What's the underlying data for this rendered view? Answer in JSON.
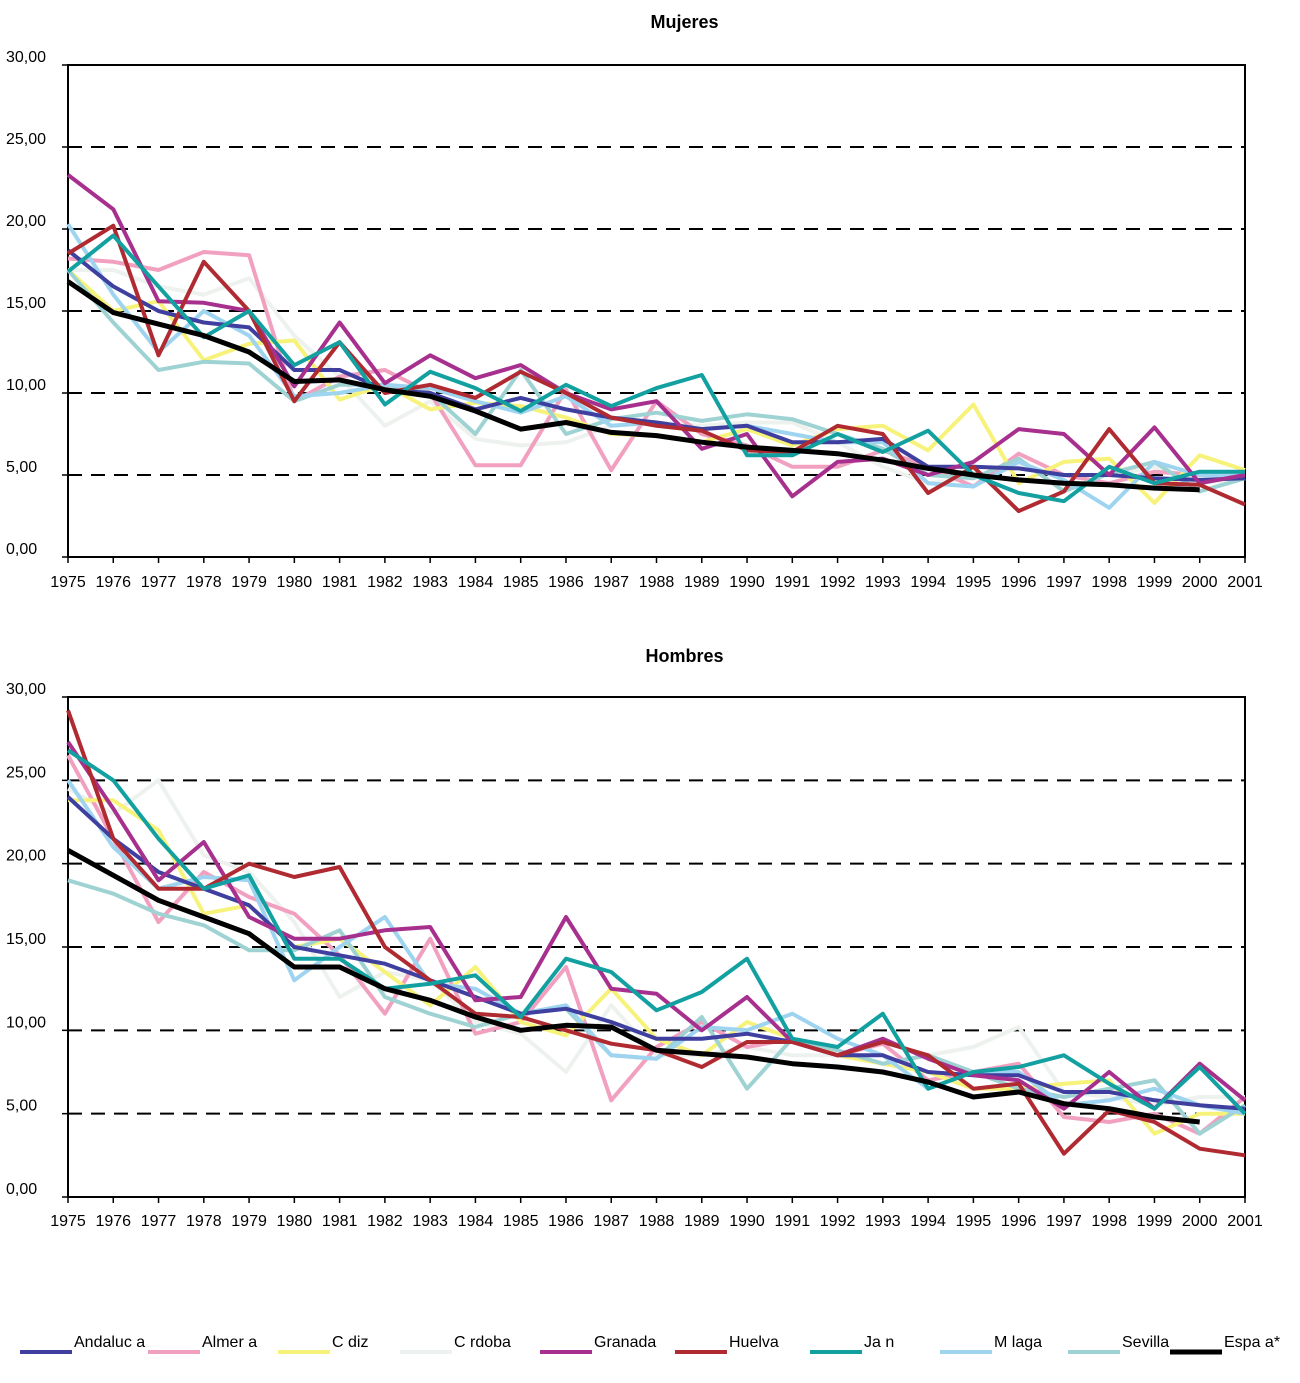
{
  "legend": [
    {
      "name": "Andaluc a",
      "color": "#3f3f9f",
      "width": 4
    },
    {
      "name": "Almer a",
      "color": "#f2a0c0",
      "width": 4
    },
    {
      "name": "C diz",
      "color": "#f7f27a",
      "width": 4
    },
    {
      "name": "C rdoba",
      "color": "#eef2ee",
      "width": 4
    },
    {
      "name": "Granada",
      "color": "#a7308e",
      "width": 4
    },
    {
      "name": "Huelva",
      "color": "#b02a32",
      "width": 4
    },
    {
      "name": "Ja n",
      "color": "#13a0a0",
      "width": 4
    },
    {
      "name": "M laga",
      "color": "#9fd4f0",
      "width": 4
    },
    {
      "name": "Sevilla",
      "color": "#9fd2d2",
      "width": 4
    },
    {
      "name": "Espa a*",
      "color": "#000000",
      "width": 5
    }
  ],
  "chart_data": [
    {
      "type": "line",
      "title": "Mujeres",
      "ylim": [
        0,
        30
      ],
      "yticks": [
        "0,00",
        "5,00",
        "10,00",
        "15,00",
        "20,00",
        "25,00",
        "30,00"
      ],
      "categories": [
        "1975",
        "1976",
        "1977",
        "1978",
        "1979",
        "1980",
        "1981",
        "1982",
        "1983",
        "1984",
        "1985",
        "1986",
        "1987",
        "1988",
        "1989",
        "1990",
        "1991",
        "1992",
        "1993",
        "1994",
        "1995",
        "1996",
        "1997",
        "1998",
        "1999",
        "2000",
        "2001"
      ],
      "series": [
        {
          "name": "C rdoba",
          "values": [
            17.5,
            17.5,
            16.5,
            16.0,
            17.0,
            13.5,
            11.0,
            8.0,
            9.5,
            7.2,
            6.8,
            7.0,
            8.0,
            8.2,
            8.0,
            8.2,
            8.2,
            7.0,
            5.5,
            4.5,
            4.8,
            5.5,
            5.0,
            5.0,
            5.5,
            4.5,
            4.8
          ]
        },
        {
          "name": "Almer a",
          "values": [
            18.2,
            18.0,
            17.5,
            18.6,
            18.4,
            9.5,
            11.0,
            11.4,
            10.0,
            5.6,
            5.6,
            10.2,
            5.3,
            9.5,
            7.5,
            6.8,
            5.5,
            5.5,
            6.5,
            5.5,
            4.3,
            6.3,
            5.0,
            4.5,
            5.2,
            5.0,
            5.0
          ]
        },
        {
          "name": "C diz",
          "values": [
            17.5,
            15.0,
            15.6,
            12.0,
            13.0,
            13.2,
            9.6,
            10.5,
            9.0,
            9.4,
            9.2,
            8.5,
            7.5,
            7.4,
            7.0,
            7.8,
            6.8,
            7.8,
            8.0,
            6.5,
            9.3,
            4.5,
            5.8,
            6.0,
            3.3,
            6.2,
            5.3
          ]
        },
        {
          "name": "Sevilla",
          "values": [
            17.5,
            14.3,
            11.4,
            11.9,
            11.8,
            9.5,
            10.5,
            10.5,
            10.0,
            7.5,
            11.4,
            7.5,
            8.4,
            8.8,
            8.3,
            8.7,
            8.4,
            7.5,
            6.6,
            5.0,
            4.8,
            6.0,
            4.0,
            5.1,
            5.8,
            4.0,
            4.8
          ]
        },
        {
          "name": "M laga",
          "values": [
            20.3,
            16.0,
            12.5,
            15.0,
            13.5,
            9.8,
            10.0,
            10.5,
            10.3,
            9.5,
            8.8,
            9.8,
            8.0,
            8.2,
            7.8,
            8.0,
            7.5,
            7.0,
            7.0,
            4.5,
            4.3,
            5.8,
            4.7,
            3.0,
            5.8,
            5.0,
            5.0
          ]
        },
        {
          "name": "Andaluc a",
          "values": [
            18.7,
            16.5,
            15.0,
            14.3,
            14.0,
            11.4,
            11.4,
            10.2,
            10.0,
            9.0,
            9.7,
            9.0,
            8.5,
            8.2,
            7.8,
            8.0,
            7.0,
            7.0,
            7.2,
            5.5,
            5.5,
            5.4,
            5.0,
            5.0,
            4.8,
            4.7,
            4.8
          ]
        },
        {
          "name": "Granada",
          "values": [
            23.3,
            21.2,
            15.6,
            15.5,
            15.0,
            10.4,
            14.3,
            10.6,
            12.3,
            10.9,
            11.7,
            10.0,
            9.0,
            9.5,
            6.6,
            7.5,
            3.7,
            5.8,
            6.0,
            5.0,
            5.8,
            7.8,
            7.5,
            5.0,
            7.9,
            4.5,
            5.0
          ]
        },
        {
          "name": "Huelva",
          "values": [
            18.5,
            20.2,
            12.3,
            18.0,
            15.0,
            9.5,
            13.1,
            10.0,
            10.5,
            9.7,
            11.3,
            10.0,
            8.5,
            8.0,
            7.7,
            6.5,
            6.4,
            8.0,
            7.5,
            3.9,
            5.5,
            2.8,
            4.0,
            7.8,
            4.5,
            4.4,
            3.2
          ]
        },
        {
          "name": "Ja n",
          "values": [
            17.4,
            19.6,
            16.5,
            13.4,
            15.0,
            11.7,
            13.1,
            9.3,
            11.3,
            10.3,
            8.9,
            10.5,
            9.2,
            10.3,
            11.1,
            6.2,
            6.2,
            7.5,
            6.4,
            7.7,
            5.0,
            3.9,
            3.4,
            5.5,
            4.5,
            5.2,
            5.2
          ]
        },
        {
          "name": "Espa a*",
          "values": [
            16.8,
            14.9,
            14.2,
            13.5,
            12.5,
            10.7,
            10.8,
            10.2,
            9.8,
            8.9,
            7.8,
            8.2,
            7.6,
            7.4,
            7.0,
            6.7,
            6.5,
            6.3,
            5.9,
            5.4,
            5.0,
            4.7,
            4.5,
            4.4,
            4.2,
            4.1,
            null
          ]
        }
      ]
    },
    {
      "type": "line",
      "title": "Hombres",
      "ylim": [
        0,
        30
      ],
      "yticks": [
        "0,00",
        "5,00",
        "10,00",
        "15,00",
        "20,00",
        "25,00",
        "30,00"
      ],
      "categories": [
        "1975",
        "1976",
        "1977",
        "1978",
        "1979",
        "1980",
        "1981",
        "1982",
        "1983",
        "1984",
        "1985",
        "1986",
        "1987",
        "1988",
        "1989",
        "1990",
        "1991",
        "1992",
        "1993",
        "1994",
        "1995",
        "1996",
        "1997",
        "1998",
        "1999",
        "2000",
        "2001"
      ],
      "series": [
        {
          "name": "C rdoba",
          "values": [
            24.5,
            23.0,
            25.0,
            20.5,
            19.5,
            16.5,
            12.0,
            13.5,
            13.0,
            10.5,
            9.8,
            7.5,
            11.5,
            8.5,
            8.5,
            9.0,
            8.5,
            8.5,
            8.0,
            8.5,
            9.0,
            10.2,
            6.3,
            6.0,
            5.5,
            6.0,
            6.0
          ]
        },
        {
          "name": "Almer a",
          "values": [
            26.5,
            21.5,
            16.5,
            19.5,
            18.0,
            17.0,
            14.5,
            11.0,
            15.5,
            9.8,
            10.5,
            13.8,
            5.8,
            9.0,
            10.5,
            9.0,
            9.5,
            8.5,
            9.2,
            7.0,
            7.5,
            8.0,
            4.8,
            4.5,
            5.0,
            3.8,
            6.0
          ]
        },
        {
          "name": "C diz",
          "values": [
            23.8,
            23.8,
            22.0,
            17.0,
            17.5,
            15.0,
            15.5,
            13.5,
            11.5,
            13.8,
            10.5,
            9.7,
            12.5,
            9.5,
            8.5,
            10.5,
            9.5,
            8.5,
            8.0,
            7.5,
            6.5,
            6.5,
            6.8,
            7.0,
            3.8,
            5.0,
            5.0
          ]
        },
        {
          "name": "Sevilla",
          "values": [
            19.0,
            18.2,
            17.0,
            16.3,
            14.8,
            14.8,
            16.0,
            12.0,
            11.0,
            10.2,
            11.0,
            11.3,
            8.5,
            8.3,
            10.8,
            6.5,
            9.5,
            8.8,
            8.0,
            8.5,
            7.5,
            6.5,
            6.0,
            6.5,
            7.0,
            3.8,
            5.5
          ]
        },
        {
          "name": "M laga",
          "values": [
            25.0,
            21.0,
            18.5,
            19.2,
            19.0,
            13.0,
            15.0,
            16.8,
            12.8,
            12.5,
            11.0,
            11.5,
            8.5,
            8.3,
            10.2,
            10.0,
            11.0,
            9.5,
            8.5,
            6.5,
            7.5,
            7.5,
            5.5,
            5.8,
            6.5,
            5.5,
            5.0
          ]
        },
        {
          "name": "Andaluc a",
          "values": [
            24.0,
            21.5,
            19.5,
            18.5,
            17.5,
            15.0,
            14.5,
            14.0,
            13.0,
            12.0,
            11.0,
            11.3,
            10.5,
            9.5,
            9.5,
            9.8,
            9.3,
            8.5,
            8.5,
            7.5,
            7.3,
            7.3,
            6.3,
            6.3,
            5.8,
            5.5,
            5.3
          ]
        },
        {
          "name": "Granada",
          "values": [
            27.3,
            23.3,
            19.0,
            21.3,
            16.8,
            15.5,
            15.5,
            16.0,
            16.2,
            11.8,
            12.0,
            16.8,
            12.5,
            12.2,
            10.0,
            12.0,
            9.3,
            8.5,
            9.5,
            8.3,
            7.3,
            7.0,
            5.3,
            7.5,
            5.3,
            8.0,
            5.8
          ]
        },
        {
          "name": "Huelva",
          "values": [
            29.2,
            21.5,
            18.5,
            18.5,
            20.0,
            19.2,
            19.8,
            15.0,
            13.0,
            11.0,
            10.8,
            10.0,
            9.2,
            8.8,
            7.8,
            9.3,
            9.3,
            8.5,
            9.3,
            8.5,
            6.5,
            6.8,
            2.6,
            5.2,
            4.5,
            2.9,
            2.5
          ]
        },
        {
          "name": "Ja n",
          "values": [
            26.8,
            25.0,
            21.5,
            18.5,
            19.3,
            14.3,
            14.3,
            12.5,
            12.8,
            13.3,
            10.8,
            14.3,
            13.5,
            11.2,
            12.3,
            14.3,
            9.5,
            9.0,
            11.0,
            6.5,
            7.5,
            7.8,
            8.5,
            6.8,
            5.3,
            7.8,
            5.0
          ]
        },
        {
          "name": "Espa a*",
          "values": [
            20.8,
            19.3,
            17.8,
            16.8,
            15.8,
            13.8,
            13.8,
            12.5,
            11.8,
            10.8,
            10.0,
            10.3,
            10.2,
            8.8,
            8.6,
            8.4,
            8.0,
            7.8,
            7.5,
            6.9,
            6.0,
            6.3,
            5.6,
            5.3,
            4.8,
            4.5,
            null
          ]
        }
      ]
    }
  ]
}
